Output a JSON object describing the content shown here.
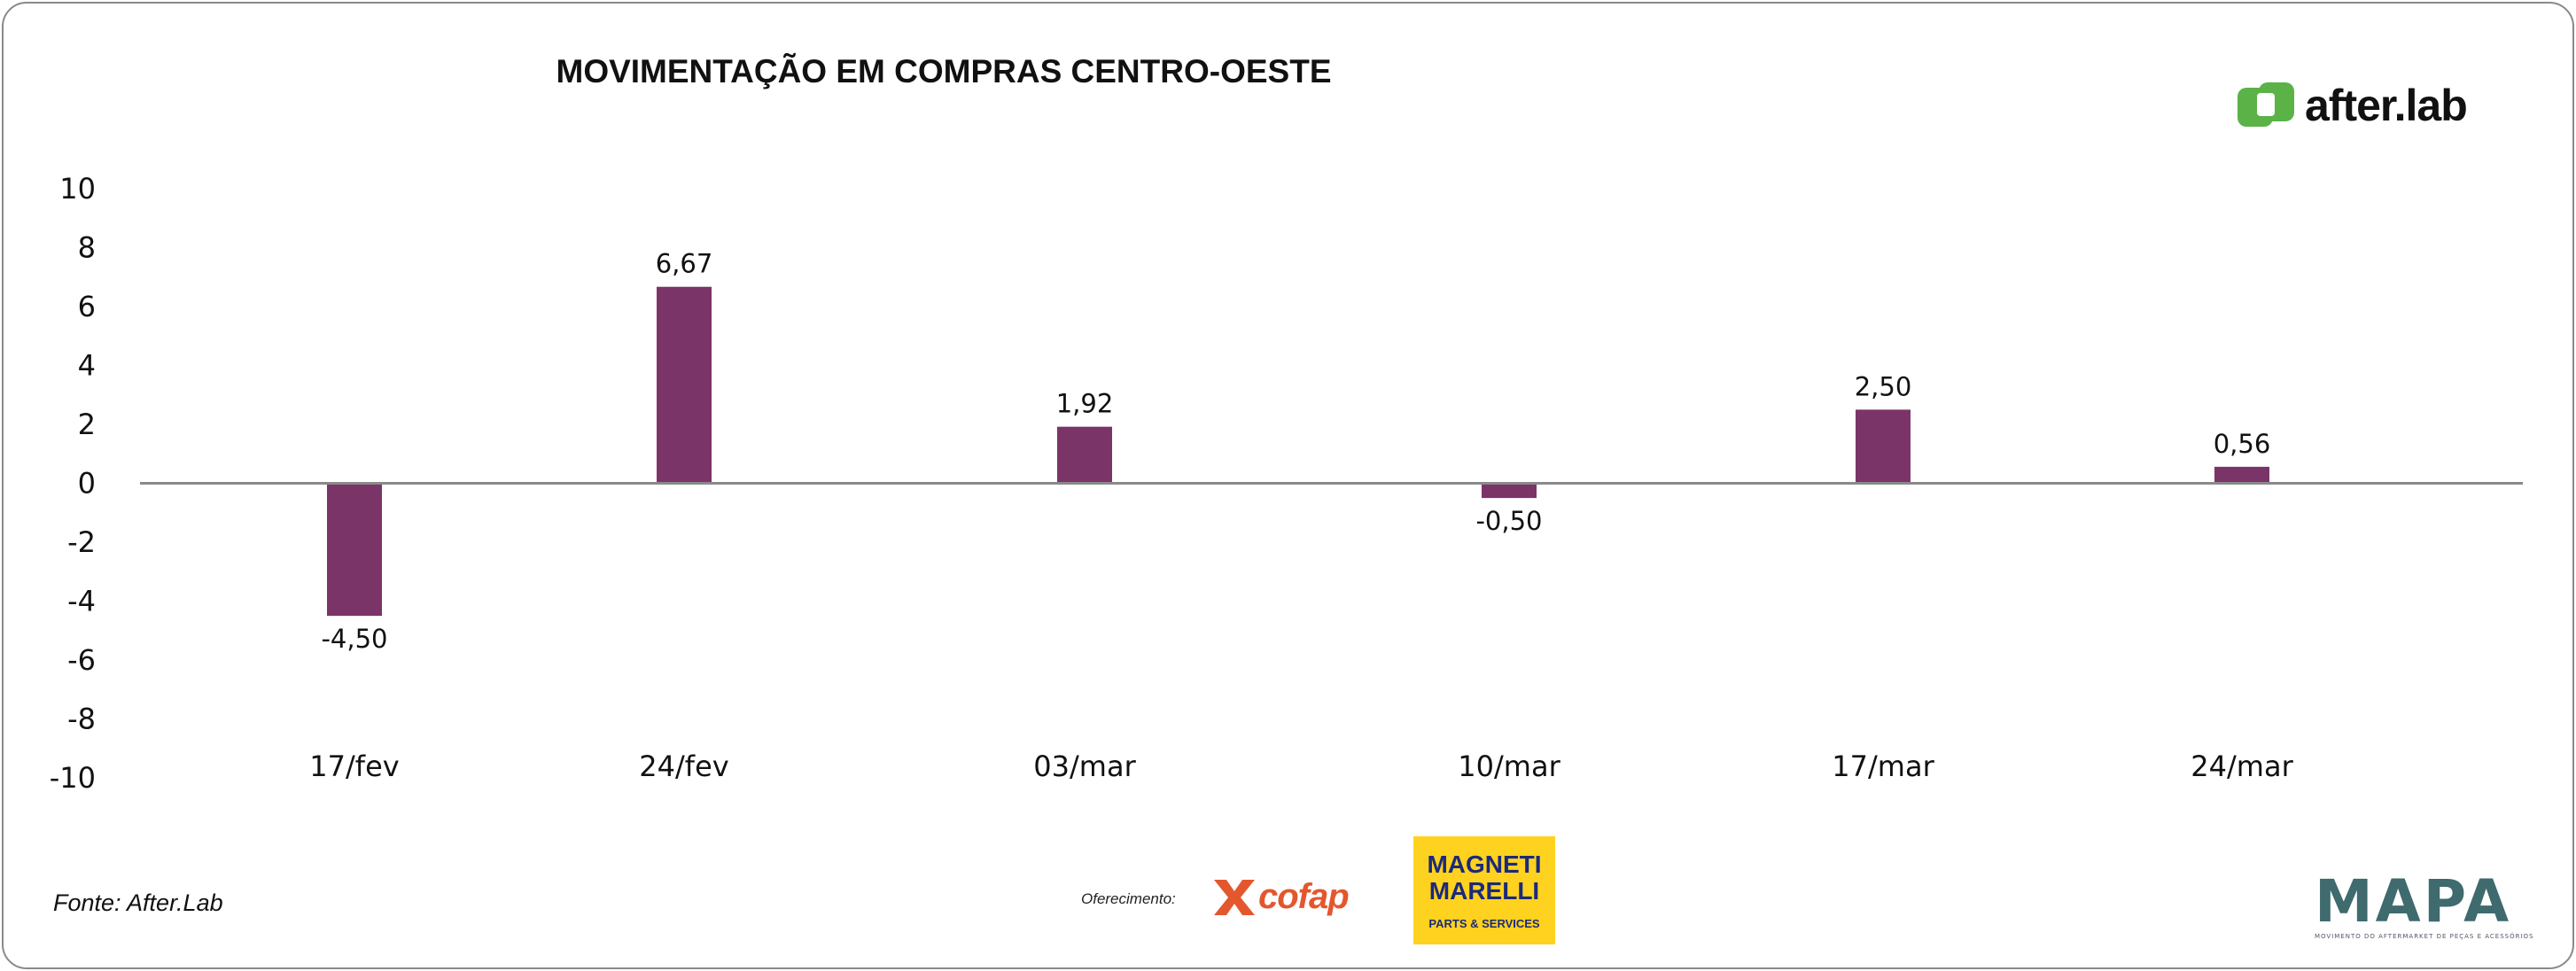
{
  "title": "MOVIMENTAÇÃO EM COMPRAS CENTRO-OESTE",
  "source": "Fonte: After.Lab",
  "brand": {
    "name": "after.lab",
    "icon": "after-lab-logo-icon",
    "color": "#5bb247"
  },
  "sponsors": {
    "label": "Oferecimento:",
    "cofap": {
      "text": "cofap",
      "color": "#e4572e"
    },
    "magneti_marelli": {
      "line1": "MAGNETI",
      "line2": "MARELLI",
      "subtitle": "PARTS & SERVICES",
      "bg": "#ffd21f",
      "fg": "#1b2a7a"
    },
    "mapa": {
      "text": "MAPA",
      "subtitle": "MOVIMENTO DO AFTERMARKET DE PEÇAS E ACESSÓRIOS"
    }
  },
  "chart_data": {
    "type": "bar",
    "title": "MOVIMENTAÇÃO EM COMPRAS CENTRO-OESTE",
    "xlabel": "",
    "ylabel": "",
    "categories": [
      "17/fev",
      "24/fev",
      "03/mar",
      "10/mar",
      "17/mar",
      "24/mar"
    ],
    "values": [
      -4.5,
      6.67,
      1.92,
      -0.5,
      2.5,
      0.56
    ],
    "data_labels": [
      "-4,50",
      "6,67",
      "1,92",
      "-0,50",
      "2,50",
      "0,56"
    ],
    "ylim": [
      -10,
      10
    ],
    "yticks": [
      10,
      8,
      6,
      4,
      2,
      0,
      -2,
      -4,
      -6,
      -8,
      -10
    ],
    "ytick_labels": [
      "10",
      "8",
      "6",
      "4",
      "2",
      "0",
      "-2",
      "-4",
      "-6",
      "-8",
      "-10"
    ],
    "bar_color": "#7b3468",
    "axis_color": "#8a8a8a",
    "grid": false,
    "legend": "none"
  }
}
